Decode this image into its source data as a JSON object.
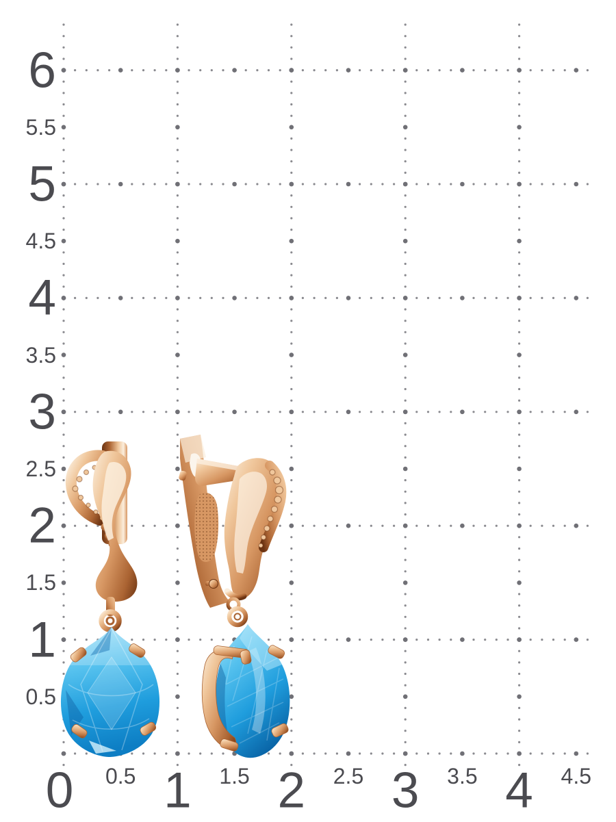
{
  "scene": {
    "type": "product-photo",
    "subject": "Pair of rose-gold drop earrings with pear-cut bright blue stones shown on a centimetre measurement grid",
    "grid_unit": "cm",
    "background_color": "#ffffff"
  },
  "grid": {
    "dot_color": "#8a8a8f",
    "dot_color_major": "#707076",
    "label_color": "#4b4b50",
    "y_axis": {
      "labels": [
        {
          "text": "6",
          "major": true
        },
        {
          "text": "5.5",
          "major": false
        },
        {
          "text": "5",
          "major": true
        },
        {
          "text": "4.5",
          "major": false
        },
        {
          "text": "4",
          "major": true
        },
        {
          "text": "3.5",
          "major": false
        },
        {
          "text": "3",
          "major": true
        },
        {
          "text": "2.5",
          "major": false
        },
        {
          "text": "2",
          "major": true
        },
        {
          "text": "1.5",
          "major": false
        },
        {
          "text": "1",
          "major": true
        },
        {
          "text": "0.5",
          "major": false
        }
      ]
    },
    "x_axis": {
      "labels": [
        {
          "text": "0",
          "major": true
        },
        {
          "text": "0.5",
          "major": false
        },
        {
          "text": "1",
          "major": true
        },
        {
          "text": "1.5",
          "major": false
        },
        {
          "text": "2",
          "major": true
        },
        {
          "text": "2.5",
          "major": false
        },
        {
          "text": "3",
          "major": true
        },
        {
          "text": "3.5",
          "major": false
        },
        {
          "text": "4",
          "major": true
        },
        {
          "text": "4.5",
          "major": false
        }
      ]
    }
  },
  "jewelry": {
    "left_earring": {
      "view": "front",
      "description": "English-lock earring, wavy rose-gold body with hammered openwork crescent, jump ring and pear-cut blue stone in a four-prong setting"
    },
    "right_earring": {
      "view": "three-quarter back",
      "description": "Same earring seen from the side: open clasp lever, stippled inner surface, hammered edge, two jump rings and pear-cut blue stone in a prong basket"
    },
    "colors": {
      "gold_hi": "#fbeedd",
      "gold_light": "#f0c79c",
      "gold_mid": "#d79763",
      "gold_deep": "#aa6332",
      "gold_dark": "#6b3312",
      "stone_pale": "#a6e2f9",
      "stone_light": "#55c1ee",
      "stone_mid": "#1f9ddd",
      "stone_deep": "#0d7ec4",
      "stone_dark": "#0a66a8"
    }
  }
}
